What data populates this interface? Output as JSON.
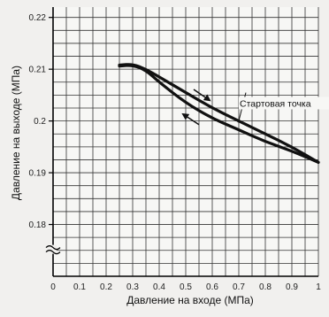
{
  "chart_data": {
    "type": "line",
    "xlabel": "Давление на входе (МПа)",
    "ylabel": "Давление на выходе (МПа)",
    "xlim": [
      0,
      1
    ],
    "ylim": [
      0.17,
      0.222
    ],
    "x_ticks": [
      0,
      0.1,
      0.2,
      0.3,
      0.4,
      0.5,
      0.6,
      0.7,
      0.8,
      0.9,
      1
    ],
    "x_tick_labels": [
      "0",
      "0.1",
      "0.2",
      "0.3",
      "0.4",
      "0.5",
      "0.6",
      "0.7",
      "0.8",
      "0.9",
      "1"
    ],
    "y_ticks": [
      0.18,
      0.19,
      0.2,
      0.21,
      0.22
    ],
    "y_tick_labels": [
      "0.18",
      "0.19",
      "0.2",
      "0.21",
      "0.22"
    ],
    "y_axis_break": true,
    "grid": true,
    "series": [
      {
        "points": [
          [
            0.25,
            0.2108
          ],
          [
            0.3,
            0.211
          ],
          [
            0.35,
            0.21
          ],
          [
            0.4,
            0.2085
          ],
          [
            0.5,
            0.2055
          ],
          [
            0.6,
            0.2025
          ],
          [
            0.7,
            0.2
          ],
          [
            0.8,
            0.1975
          ],
          [
            0.9,
            0.195
          ],
          [
            1.0,
            0.192
          ]
        ]
      },
      {
        "points": [
          [
            0.25,
            0.2106
          ],
          [
            0.3,
            0.2108
          ],
          [
            0.35,
            0.2098
          ],
          [
            0.4,
            0.2075
          ],
          [
            0.5,
            0.2035
          ],
          [
            0.6,
            0.2005
          ],
          [
            0.7,
            0.1983
          ],
          [
            0.8,
            0.196
          ],
          [
            0.9,
            0.1942
          ],
          [
            1.0,
            0.192
          ]
        ]
      }
    ],
    "annotations": [
      {
        "text": "Стартовая точка",
        "x": 0.7,
        "y": 0.2
      }
    ],
    "direction_arrows": [
      {
        "direction": "increasing",
        "from": [
          0.53,
          0.2061
        ],
        "to": [
          0.59,
          0.204
        ]
      },
      {
        "direction": "decreasing",
        "from": [
          0.55,
          0.1993
        ],
        "to": [
          0.49,
          0.2013
        ]
      }
    ]
  }
}
